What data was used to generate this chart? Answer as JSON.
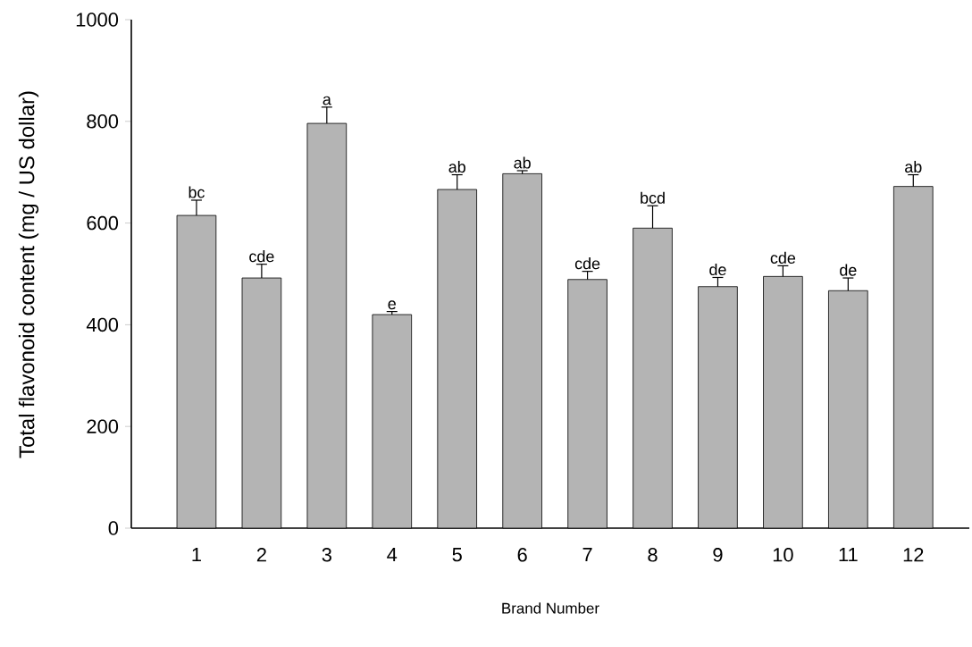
{
  "chart_data": {
    "type": "bar",
    "xlabel": "Brand Number",
    "ylabel": "Total flavonoid content (mg / US dollar)",
    "categories": [
      "1",
      "2",
      "3",
      "4",
      "5",
      "6",
      "7",
      "8",
      "9",
      "10",
      "11",
      "12"
    ],
    "values": [
      615,
      492,
      796,
      420,
      666,
      697,
      489,
      590,
      475,
      495,
      467,
      672
    ],
    "errors": [
      30,
      27,
      32,
      6,
      29,
      6,
      16,
      44,
      18,
      21,
      25,
      23
    ],
    "color": "#b4b4b4",
    "ylim": [
      0,
      1000
    ],
    "yticks": [
      0,
      200,
      400,
      600,
      800,
      1000
    ],
    "annotations": [
      "bc",
      "cde",
      "a",
      "e",
      "ab",
      "ab",
      "cde",
      "bcd",
      "de",
      "cde",
      "de",
      "ab"
    ]
  }
}
